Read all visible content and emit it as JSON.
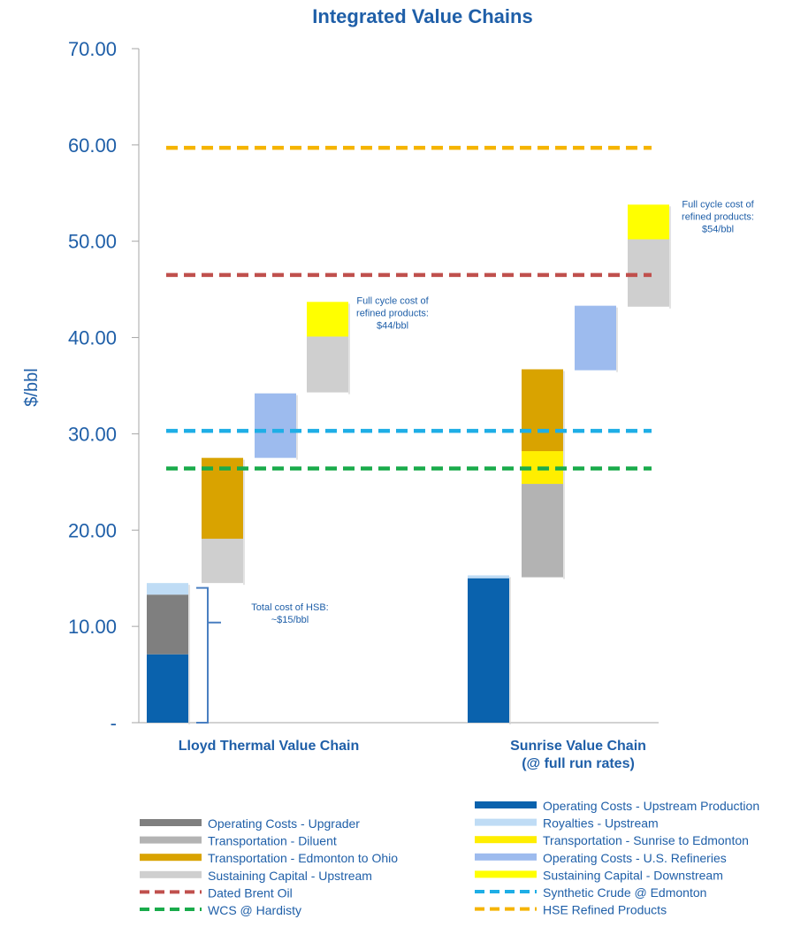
{
  "chart_data": {
    "type": "bar",
    "subtype": "floating-stacked-waterfall",
    "title": "Integrated Value Chains",
    "ylabel": "$/bbl",
    "ylim": [
      0,
      70
    ],
    "yticks": [
      {
        "value": 0,
        "label": "-"
      },
      {
        "value": 10,
        "label": "10.00"
      },
      {
        "value": 20,
        "label": "20.00"
      },
      {
        "value": 30,
        "label": "30.00"
      },
      {
        "value": 40,
        "label": "40.00"
      },
      {
        "value": 50,
        "label": "50.00"
      },
      {
        "value": 60,
        "label": "60.00"
      },
      {
        "value": 70,
        "label": "70.00"
      }
    ],
    "categories": [
      {
        "lines": [
          "Lloyd Thermal Value Chain"
        ]
      },
      {
        "lines": [
          "Sunrise Value Chain",
          "(@  full run rates)"
        ]
      }
    ],
    "segments": [
      {
        "group": 0,
        "step": 0,
        "series": "Operating Costs - Upstream Production",
        "from": 0,
        "to": 7.1
      },
      {
        "group": 0,
        "step": 0,
        "series": "Operating Costs - Upgrader",
        "from": 7.1,
        "to": 13.3
      },
      {
        "group": 0,
        "step": 0,
        "series": "Royalties - Upstream",
        "from": 13.3,
        "to": 14.5
      },
      {
        "group": 0,
        "step": 1,
        "series": "Sustaining Capital - Upstream",
        "from": 14.5,
        "to": 19.1
      },
      {
        "group": 0,
        "step": 1,
        "series": "Transportation - Edmonton to Ohio",
        "from": 19.1,
        "to": 27.5
      },
      {
        "group": 0,
        "step": 2,
        "series": "Operating Costs - U.S. Refineries",
        "from": 27.5,
        "to": 34.2
      },
      {
        "group": 0,
        "step": 3,
        "series": "Sustaining Capital - Upstream",
        "from": 34.3,
        "to": 40.1
      },
      {
        "group": 0,
        "step": 3,
        "series": "Sustaining Capital - Downstream",
        "from": 40.1,
        "to": 43.7
      },
      {
        "group": 1,
        "step": 0,
        "series": "Operating Costs - Upstream Production",
        "from": 0,
        "to": 15.0
      },
      {
        "group": 1,
        "step": 0,
        "series": "Royalties - Upstream",
        "from": 15.0,
        "to": 15.3
      },
      {
        "group": 1,
        "step": 1,
        "series": "Transportation - Diluent",
        "from": 15.1,
        "to": 24.8
      },
      {
        "group": 1,
        "step": 1,
        "series": "Transportation - Sunrise to Edmonton",
        "from": 24.8,
        "to": 28.2
      },
      {
        "group": 1,
        "step": 1,
        "series": "Transportation - Edmonton to Ohio",
        "from": 28.2,
        "to": 36.7
      },
      {
        "group": 1,
        "step": 2,
        "series": "Operating Costs - U.S. Refineries",
        "from": 36.6,
        "to": 43.3
      },
      {
        "group": 1,
        "step": 3,
        "series": "Sustaining Capital - Upstream",
        "from": 43.2,
        "to": 50.2
      },
      {
        "group": 1,
        "step": 3,
        "series": "Sustaining Capital - Downstream",
        "from": 50.2,
        "to": 53.8
      }
    ],
    "reference_lines": [
      {
        "name": "HSE Refined Products",
        "value": 59.7
      },
      {
        "name": "Dated Brent Oil",
        "value": 46.5
      },
      {
        "name": "Synthetic Crude @ Edmonton",
        "value": 30.3
      },
      {
        "name": "WCS @ Hardisty",
        "value": 26.4
      }
    ],
    "annotations": [
      {
        "name": "lloyd-total-cost",
        "lines": [
          "Total cost of HSB:",
          "~$15/bbl"
        ],
        "y_value": 10.4,
        "bracket_from": 0,
        "bracket_to": 14.0
      },
      {
        "name": "lloyd-full-cycle",
        "lines": [
          "Full cycle cost of",
          "refined products:",
          "$44/bbl"
        ],
        "y_value": 42.5
      },
      {
        "name": "sunrise-full-cycle",
        "lines": [
          "Full cycle cost of",
          "refined products:",
          "$54/bbl"
        ],
        "y_value": 52.5
      }
    ],
    "legend": {
      "placement": "bottom",
      "left": [
        {
          "name": "Operating Costs - Upgrader",
          "style": "bar",
          "color": "#7f7f7f"
        },
        {
          "name": "Transportation - Diluent",
          "style": "bar",
          "color": "#b3b3b3"
        },
        {
          "name": "Transportation - Edmonton to Ohio",
          "style": "bar",
          "color": "#d9a300"
        },
        {
          "name": "Sustaining Capital - Upstream",
          "style": "bar",
          "color": "#cfcfcf"
        },
        {
          "name": "Dated Brent Oil",
          "style": "dash",
          "color": "#c0504d"
        },
        {
          "name": "WCS @ Hardisty",
          "style": "dash",
          "color": "#1aab4b"
        }
      ],
      "right": [
        {
          "name": "Operating Costs - Upstream Production",
          "style": "bar",
          "color": "#0a62ad"
        },
        {
          "name": "Royalties - Upstream",
          "style": "bar",
          "color": "#bfdcf5"
        },
        {
          "name": "Transportation - Sunrise to Edmonton",
          "style": "bar",
          "color": "#ffee00"
        },
        {
          "name": "Operating Costs - U.S. Refineries",
          "style": "bar",
          "color": "#9dbbee"
        },
        {
          "name": "Sustaining Capital - Downstream",
          "style": "bar",
          "color": "#ffff00"
        },
        {
          "name": "Synthetic Crude @ Edmonton",
          "style": "dash",
          "color": "#1eaee6"
        },
        {
          "name": "HSE Refined Products",
          "style": "dash",
          "color": "#f5b400"
        }
      ]
    },
    "series_colors": {
      "Operating Costs - Upstream Production": "#0a62ad",
      "Operating Costs - Upgrader": "#7f7f7f",
      "Royalties - Upstream": "#bfdcf5",
      "Transportation - Diluent": "#b3b3b3",
      "Transportation - Sunrise to Edmonton": "#ffee00",
      "Transportation - Edmonton to Ohio": "#d9a300",
      "Operating Costs - U.S. Refineries": "#9dbbee",
      "Sustaining Capital - Upstream": "#cfcfcf",
      "Sustaining Capital - Downstream": "#ffff00",
      "Dated Brent Oil": "#c0504d",
      "Synthetic Crude @ Edmonton": "#1eaee6",
      "WCS @ Hardisty": "#1aab4b",
      "HSE Refined Products": "#f5b400"
    },
    "grid": false
  }
}
